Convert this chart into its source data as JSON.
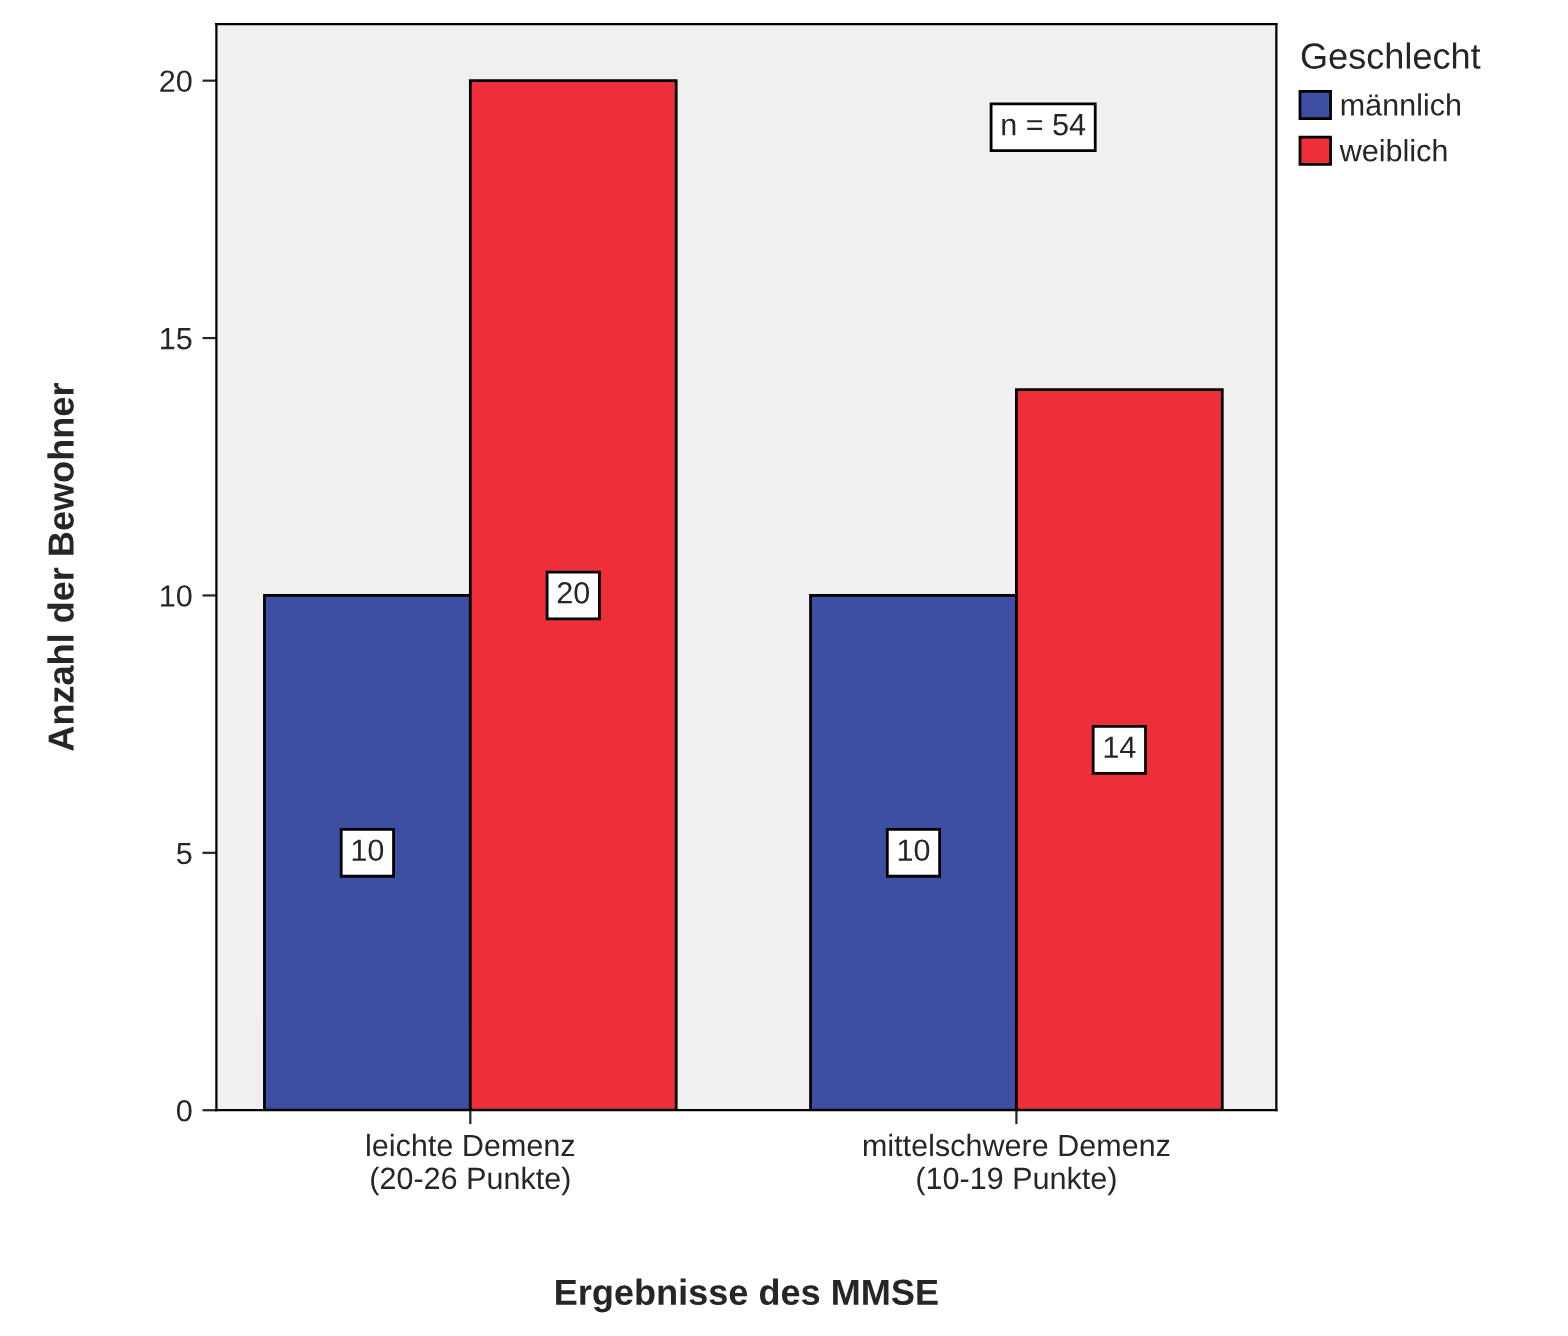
{
  "chart_data": {
    "type": "bar",
    "xlabel": "Ergebnisse des MMSE",
    "ylabel": "Anzahl der Bewohner",
    "legend_title": "Geschlecht",
    "categories": [
      "leichte Demenz\n(20-26 Punkte)",
      "mittelschwere Demenz\n(10-19 Punkte)"
    ],
    "series": [
      {
        "name": "männlich",
        "color": "#3e4fa3",
        "values": [
          10,
          10
        ]
      },
      {
        "name": "weiblich",
        "color": "#ee2e38",
        "values": [
          20,
          14
        ]
      }
    ],
    "ylim": [
      0,
      21.1
    ],
    "yticks": [
      0,
      5,
      10,
      15,
      20
    ],
    "grid": false,
    "legend": "top right",
    "data_labels": true,
    "annotations": [
      "n = 54"
    ]
  }
}
